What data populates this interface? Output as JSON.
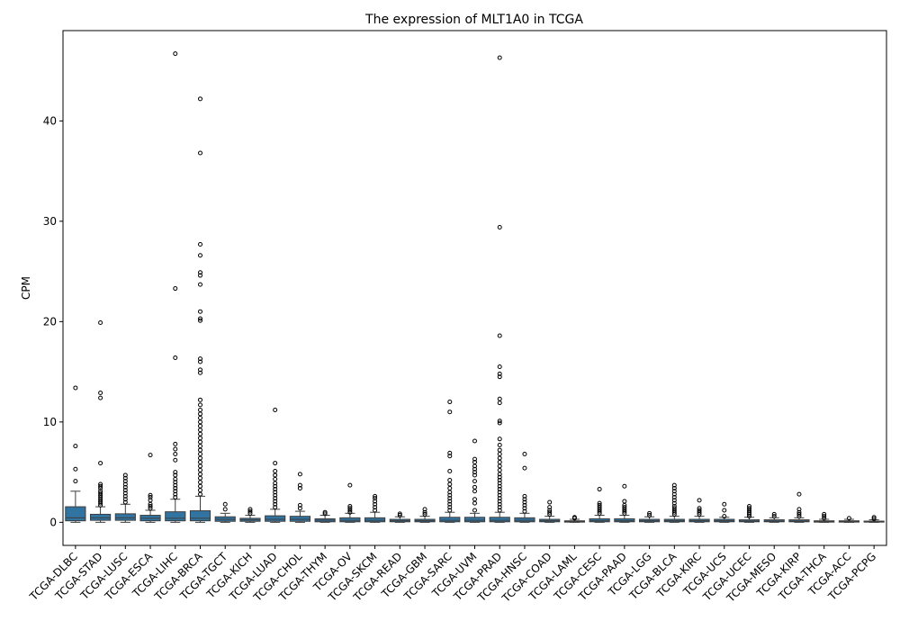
{
  "chart_data": {
    "type": "box",
    "title": "The expression of MLT1A0 in TCGA",
    "xlabel": "",
    "ylabel": "CPM",
    "ylim": [
      -2.3,
      49
    ],
    "yticks": [
      0,
      10,
      20,
      30,
      40
    ],
    "box_color": "#3274a1",
    "categories": [
      "TCGA-DLBC",
      "TCGA-STAD",
      "TCGA-LUSC",
      "TCGA-ESCA",
      "TCGA-LIHC",
      "TCGA-BRCA",
      "TCGA-TGCT",
      "TCGA-KICH",
      "TCGA-LUAD",
      "TCGA-CHOL",
      "TCGA-THYM",
      "TCGA-OV",
      "TCGA-SKCM",
      "TCGA-READ",
      "TCGA-GBM",
      "TCGA-SARC",
      "TCGA-UVM",
      "TCGA-PRAD",
      "TCGA-HNSC",
      "TCGA-COAD",
      "TCGA-LAML",
      "TCGA-CESC",
      "TCGA-PAAD",
      "TCGA-LGG",
      "TCGA-BLCA",
      "TCGA-KIRC",
      "TCGA-UCS",
      "TCGA-UCEC",
      "TCGA-MESO",
      "TCGA-KIRP",
      "TCGA-THCA",
      "TCGA-ACC",
      "TCGA-PCPG"
    ],
    "boxes": [
      {
        "whislo": 0.0,
        "q1": 0.15,
        "median": 0.45,
        "q3": 1.55,
        "whishi": 3.1,
        "fliers": [
          4.1,
          5.3,
          7.6,
          13.4
        ]
      },
      {
        "whislo": 0.0,
        "q1": 0.2,
        "median": 0.45,
        "q3": 0.8,
        "whishi": 1.55,
        "fliers": [
          1.7,
          1.9,
          2.1,
          2.3,
          2.5,
          2.7,
          2.9,
          3.1,
          3.4,
          3.6,
          3.8,
          5.9,
          12.4,
          12.9,
          19.9
        ]
      },
      {
        "whislo": 0.0,
        "q1": 0.2,
        "median": 0.45,
        "q3": 0.85,
        "whishi": 1.8,
        "fliers": [
          2.0,
          2.3,
          2.6,
          2.9,
          3.2,
          3.5,
          3.8,
          4.1,
          4.4,
          4.7
        ]
      },
      {
        "whislo": 0.0,
        "q1": 0.15,
        "median": 0.4,
        "q3": 0.7,
        "whishi": 1.2,
        "fliers": [
          1.4,
          1.6,
          1.8,
          2.2,
          2.5,
          2.7,
          6.7
        ]
      },
      {
        "whislo": 0.0,
        "q1": 0.15,
        "median": 0.4,
        "q3": 1.05,
        "whishi": 2.3,
        "fliers": [
          2.5,
          2.8,
          3.1,
          3.4,
          3.7,
          4.0,
          4.3,
          4.7,
          5.0,
          6.2,
          6.8,
          7.3,
          7.8,
          16.4,
          23.3,
          46.7
        ]
      },
      {
        "whislo": 0.0,
        "q1": 0.15,
        "median": 0.4,
        "q3": 1.15,
        "whishi": 2.6,
        "fliers": [
          2.8,
          3.2,
          3.6,
          4.0,
          4.4,
          4.8,
          5.2,
          5.6,
          6.0,
          6.4,
          6.8,
          7.2,
          7.6,
          8.0,
          8.4,
          8.8,
          9.2,
          9.6,
          10.0,
          10.4,
          10.8,
          11.2,
          11.7,
          12.2,
          14.9,
          15.2,
          16.0,
          16.3,
          20.1,
          20.3,
          21.0,
          23.7,
          24.6,
          24.9,
          26.6,
          27.7,
          36.8,
          42.2
        ]
      },
      {
        "whislo": 0.0,
        "q1": 0.1,
        "median": 0.3,
        "q3": 0.55,
        "whishi": 0.9,
        "fliers": [
          1.3,
          1.8
        ]
      },
      {
        "whislo": 0.0,
        "q1": 0.1,
        "median": 0.25,
        "q3": 0.4,
        "whishi": 0.7,
        "fliers": [
          0.9,
          1.1,
          1.3
        ]
      },
      {
        "whislo": 0.0,
        "q1": 0.1,
        "median": 0.3,
        "q3": 0.65,
        "whishi": 1.3,
        "fliers": [
          1.5,
          1.8,
          2.1,
          2.4,
          2.7,
          3.0,
          3.3,
          3.6,
          3.9,
          4.3,
          4.7,
          5.1,
          5.9,
          11.2
        ]
      },
      {
        "whislo": 0.0,
        "q1": 0.1,
        "median": 0.3,
        "q3": 0.6,
        "whishi": 1.1,
        "fliers": [
          1.4,
          1.7,
          3.4,
          3.7,
          4.8
        ]
      },
      {
        "whislo": 0.0,
        "q1": 0.05,
        "median": 0.2,
        "q3": 0.35,
        "whishi": 0.7,
        "fliers": [
          0.85,
          1.0
        ]
      },
      {
        "whislo": 0.0,
        "q1": 0.05,
        "median": 0.2,
        "q3": 0.45,
        "whishi": 0.9,
        "fliers": [
          1.0,
          1.2,
          1.4,
          1.6,
          3.7
        ]
      },
      {
        "whislo": 0.0,
        "q1": 0.05,
        "median": 0.2,
        "q3": 0.45,
        "whishi": 1.0,
        "fliers": [
          1.2,
          1.5,
          1.8,
          2.1,
          2.4,
          2.6
        ]
      },
      {
        "whislo": 0.0,
        "q1": 0.05,
        "median": 0.15,
        "q3": 0.3,
        "whishi": 0.55,
        "fliers": [
          0.7,
          0.85
        ]
      },
      {
        "whislo": 0.0,
        "q1": 0.05,
        "median": 0.15,
        "q3": 0.3,
        "whishi": 0.6,
        "fliers": [
          0.8,
          1.0,
          1.3
        ]
      },
      {
        "whislo": 0.0,
        "q1": 0.05,
        "median": 0.2,
        "q3": 0.5,
        "whishi": 1.0,
        "fliers": [
          1.2,
          1.5,
          1.8,
          2.1,
          2.4,
          2.7,
          3.0,
          3.4,
          3.8,
          4.2,
          5.1,
          6.6,
          6.9,
          11.0,
          12.0
        ]
      },
      {
        "whislo": 0.0,
        "q1": 0.05,
        "median": 0.2,
        "q3": 0.5,
        "whishi": 0.9,
        "fliers": [
          1.2,
          1.9,
          2.3,
          3.1,
          3.5,
          4.1,
          4.7,
          5.0,
          5.3,
          5.6,
          6.0,
          6.3,
          8.1
        ]
      },
      {
        "whislo": 0.0,
        "q1": 0.05,
        "median": 0.2,
        "q3": 0.5,
        "whishi": 1.0,
        "fliers": [
          1.2,
          1.5,
          1.8,
          2.1,
          2.4,
          2.7,
          3.0,
          3.3,
          3.6,
          3.9,
          4.2,
          4.5,
          4.8,
          5.2,
          5.6,
          6.0,
          6.4,
          6.8,
          7.2,
          7.7,
          8.3,
          9.9,
          10.1,
          11.9,
          12.3,
          14.5,
          14.8,
          15.5,
          18.6,
          29.4,
          46.3
        ]
      },
      {
        "whislo": 0.0,
        "q1": 0.05,
        "median": 0.2,
        "q3": 0.45,
        "whishi": 0.9,
        "fliers": [
          1.1,
          1.4,
          1.7,
          2.0,
          2.3,
          2.6,
          5.4,
          6.8
        ]
      },
      {
        "whislo": 0.0,
        "q1": 0.05,
        "median": 0.15,
        "q3": 0.3,
        "whishi": 0.6,
        "fliers": [
          0.8,
          1.0,
          1.2,
          1.5,
          2.0
        ]
      },
      {
        "whislo": 0.0,
        "q1": 0.02,
        "median": 0.08,
        "q3": 0.15,
        "whishi": 0.3,
        "fliers": [
          0.4,
          0.5
        ]
      },
      {
        "whislo": 0.0,
        "q1": 0.05,
        "median": 0.15,
        "q3": 0.35,
        "whishi": 0.7,
        "fliers": [
          0.9,
          1.1,
          1.3,
          1.5,
          1.7,
          1.9,
          3.3
        ]
      },
      {
        "whislo": 0.0,
        "q1": 0.05,
        "median": 0.15,
        "q3": 0.35,
        "whishi": 0.7,
        "fliers": [
          0.9,
          1.1,
          1.3,
          1.5,
          1.7,
          2.1,
          3.6
        ]
      },
      {
        "whislo": 0.0,
        "q1": 0.05,
        "median": 0.15,
        "q3": 0.3,
        "whishi": 0.55,
        "fliers": [
          0.7,
          0.9
        ]
      },
      {
        "whislo": 0.0,
        "q1": 0.05,
        "median": 0.15,
        "q3": 0.3,
        "whishi": 0.6,
        "fliers": [
          0.8,
          1.0,
          1.2,
          1.4,
          1.6,
          1.9,
          2.2,
          2.5,
          2.8,
          3.1,
          3.4,
          3.7
        ]
      },
      {
        "whislo": 0.0,
        "q1": 0.05,
        "median": 0.15,
        "q3": 0.3,
        "whishi": 0.6,
        "fliers": [
          0.8,
          1.0,
          1.2,
          1.4,
          2.2
        ]
      },
      {
        "whislo": 0.0,
        "q1": 0.05,
        "median": 0.15,
        "q3": 0.3,
        "whishi": 0.5,
        "fliers": [
          0.6,
          1.2,
          1.8
        ]
      },
      {
        "whislo": 0.0,
        "q1": 0.05,
        "median": 0.12,
        "q3": 0.25,
        "whishi": 0.5,
        "fliers": [
          0.6,
          0.8,
          1.0,
          1.2,
          1.4,
          1.6
        ]
      },
      {
        "whislo": 0.0,
        "q1": 0.05,
        "median": 0.12,
        "q3": 0.25,
        "whishi": 0.45,
        "fliers": [
          0.6,
          0.8
        ]
      },
      {
        "whislo": 0.0,
        "q1": 0.05,
        "median": 0.12,
        "q3": 0.25,
        "whishi": 0.45,
        "fliers": [
          0.6,
          0.8,
          1.0,
          1.3,
          2.8
        ]
      },
      {
        "whislo": 0.0,
        "q1": 0.02,
        "median": 0.08,
        "q3": 0.15,
        "whishi": 0.3,
        "fliers": [
          0.4,
          0.6,
          0.8
        ]
      },
      {
        "whislo": 0.0,
        "q1": 0.02,
        "median": 0.08,
        "q3": 0.15,
        "whishi": 0.3,
        "fliers": [
          0.4
        ]
      },
      {
        "whislo": 0.0,
        "q1": 0.02,
        "median": 0.06,
        "q3": 0.12,
        "whishi": 0.25,
        "fliers": [
          0.35,
          0.5
        ]
      }
    ]
  }
}
